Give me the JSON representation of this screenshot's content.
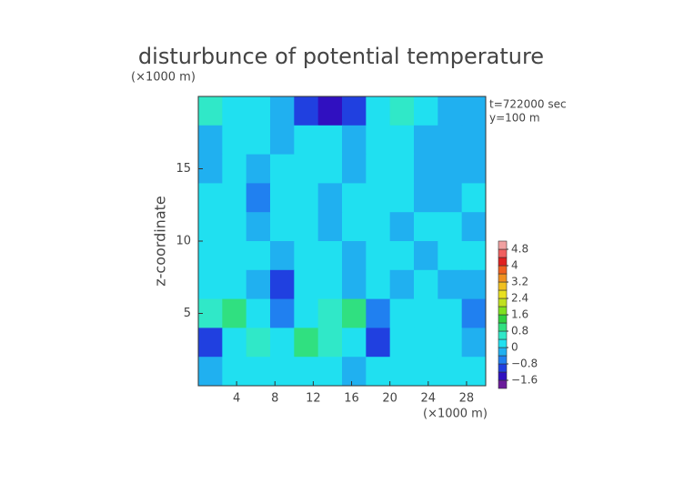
{
  "chart_data": {
    "type": "contour",
    "title": "disturbunce of potential temperature",
    "ylabel": "z-coordinate",
    "ylabel_unit": "(×1000 m)",
    "xlabel_unit": "(×1000 m)",
    "annotations": [
      "t=722000 sec",
      "y=100 m"
    ],
    "xlim": [
      0,
      30
    ],
    "ylim": [
      0,
      20
    ],
    "xticks": [
      4,
      8,
      12,
      16,
      20,
      24,
      28
    ],
    "yticks": [
      5,
      10,
      15
    ],
    "x": [
      1.25,
      3.75,
      6.25,
      8.75,
      11.25,
      13.75,
      16.25,
      18.75,
      21.25,
      23.75,
      26.25,
      28.75
    ],
    "y": [
      19,
      17,
      15,
      13,
      11,
      9,
      7,
      5,
      3,
      1
    ],
    "z": [
      [
        0.6,
        0.3,
        0,
        -0.4,
        -0.9,
        -1.3,
        -1.0,
        0,
        0.7,
        0.2,
        -0.3,
        -0.2
      ],
      [
        -0.2,
        0.1,
        0.1,
        -0.2,
        0.2,
        0.1,
        -0.2,
        0.1,
        0.2,
        -0.3,
        -0.2,
        -0.2
      ],
      [
        -0.1,
        0.2,
        -0.3,
        0.1,
        0.3,
        0.2,
        -0.2,
        0.2,
        0,
        -0.1,
        -0.3,
        -0.1
      ],
      [
        0.1,
        0.2,
        -0.5,
        0.2,
        0.3,
        -0.2,
        0.2,
        0.1,
        0.3,
        -0.2,
        -0.2,
        0.1
      ],
      [
        0.2,
        0.1,
        -0.3,
        0.2,
        0.1,
        -0.3,
        0.3,
        0,
        -0.2,
        0.1,
        0,
        -0.2
      ],
      [
        0.3,
        0.2,
        0.1,
        -0.2,
        0.2,
        0.1,
        -0.2,
        0.2,
        0.3,
        -0.3,
        0.1,
        0.2
      ],
      [
        0,
        0.2,
        -0.1,
        -0.9,
        0.3,
        0.1,
        -0.2,
        0.2,
        -0.1,
        0.1,
        -0.4,
        -0.3
      ],
      [
        0.7,
        0.9,
        0.3,
        -0.7,
        0.2,
        0.4,
        0.9,
        -0.8,
        0.1,
        0.2,
        0.1,
        -0.6
      ],
      [
        -1.2,
        0.3,
        0.6,
        0.1,
        0.9,
        0.7,
        0.2,
        -1.1,
        0.1,
        0.3,
        0.2,
        -0.3
      ],
      [
        -0.3,
        0.2,
        0.1,
        0.3,
        0.2,
        0.1,
        -0.2,
        0.1,
        0.3,
        0.2,
        0.1,
        0.2
      ]
    ],
    "colorbar": {
      "levels": [
        -2.0,
        -1.6,
        -1.2,
        -0.8,
        -0.4,
        0,
        0.4,
        0.8,
        1.2,
        1.6,
        2.0,
        2.4,
        2.8,
        3.2,
        3.6,
        4.0,
        4.4,
        4.8,
        5.2
      ],
      "colors": [
        "#6a1b9a",
        "#3010c0",
        "#2040e0",
        "#2080f0",
        "#20b0f0",
        "#20e0f0",
        "#30e8c8",
        "#30e080",
        "#30d040",
        "#80e020",
        "#c0e020",
        "#e8e020",
        "#f0c020",
        "#f09020",
        "#f06020",
        "#e02020",
        "#f06060",
        "#f0a0a0"
      ],
      "ticks": [
        4.8,
        4,
        3.2,
        2.4,
        1.6,
        0.8,
        0,
        {
          "value": -0.8,
          "label": "−0.8"
        },
        {
          "value": -1.6,
          "label": "−1.6"
        }
      ]
    }
  }
}
